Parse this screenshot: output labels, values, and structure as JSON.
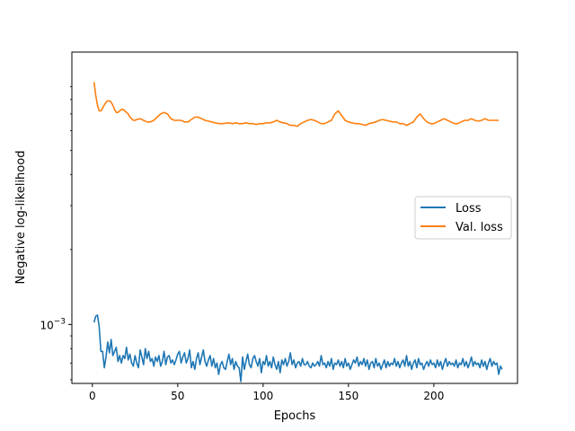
{
  "chart_data": {
    "type": "line",
    "title": "",
    "xlabel": "Epochs",
    "ylabel": "Negative log-likelihood",
    "yscale": "log",
    "xlim": [
      -12,
      249
    ],
    "ylim": [
      0.00058,
      0.0124
    ],
    "x_ticks": [
      0,
      50,
      100,
      150,
      200
    ],
    "x_tick_labels": [
      "0",
      "50",
      "100",
      "150",
      "200"
    ],
    "y_ticks": [
      0.001
    ],
    "y_tick_labels": [
      {
        "base": "10",
        "exp": "−3"
      }
    ],
    "grid": false,
    "legend_position": "center-right",
    "series": [
      {
        "name": "Loss",
        "color": "#1f77b4",
        "x_start": 1,
        "x_step": 1,
        "values": [
          0.00102,
          0.00108,
          0.00109,
          0.00098,
          0.00078,
          0.00078,
          0.00067,
          0.00074,
          0.00085,
          0.00077,
          0.00087,
          0.00075,
          0.00078,
          0.00081,
          0.00071,
          0.00075,
          0.0007,
          0.00075,
          0.00073,
          0.00081,
          0.00072,
          0.00076,
          0.0007,
          0.00068,
          0.00075,
          0.0007,
          0.00067,
          0.00079,
          0.00074,
          0.00069,
          0.0008,
          0.00073,
          0.00078,
          0.00071,
          0.00073,
          0.00068,
          0.00074,
          0.00071,
          0.00075,
          0.00068,
          0.00071,
          0.00078,
          0.00069,
          0.00074,
          0.00075,
          0.0007,
          0.00072,
          0.00069,
          0.00072,
          0.00076,
          0.00078,
          0.0007,
          0.00074,
          0.00077,
          0.0007,
          0.00073,
          0.00079,
          0.00067,
          0.00071,
          0.00066,
          0.00073,
          0.00077,
          0.00069,
          0.00074,
          0.00079,
          0.00071,
          0.00068,
          0.00072,
          0.00075,
          0.00068,
          0.00073,
          0.00067,
          0.0007,
          0.00063,
          0.00069,
          0.00071,
          0.00067,
          0.00066,
          0.00071,
          0.00076,
          0.00069,
          0.00073,
          0.00066,
          0.00071,
          0.00068,
          0.00067,
          0.00059,
          0.00074,
          0.00066,
          0.00071,
          0.00076,
          0.00069,
          0.00067,
          0.00073,
          0.00075,
          0.00071,
          0.00068,
          0.00073,
          0.00064,
          0.00071,
          0.00069,
          0.00075,
          0.00068,
          0.00071,
          0.00067,
          0.00074,
          0.00069,
          0.00066,
          0.00071,
          0.00064,
          0.00072,
          0.00069,
          0.00073,
          0.00068,
          0.00071,
          0.00077,
          0.00069,
          0.00072,
          0.00067,
          0.0007,
          0.00071,
          0.00068,
          0.00073,
          0.00069,
          0.00069,
          0.00071,
          0.00068,
          0.00067,
          0.0007,
          0.00068,
          0.00069,
          0.00071,
          0.00068,
          0.00075,
          0.00069,
          0.0007,
          0.00067,
          0.00071,
          0.00068,
          0.00073,
          0.00066,
          0.0007,
          0.00069,
          0.00072,
          0.00068,
          0.00071,
          0.00067,
          0.00073,
          0.00068,
          0.0007,
          0.00066,
          0.00069,
          0.00072,
          0.0007,
          0.00074,
          0.00068,
          0.00071,
          0.00069,
          0.00073,
          0.00068,
          0.00072,
          0.00066,
          0.0007,
          0.00071,
          0.00067,
          0.00073,
          0.00068,
          0.0007,
          0.00066,
          0.00069,
          0.00072,
          0.00067,
          0.00071,
          0.00068,
          0.0007,
          0.00069,
          0.00073,
          0.00068,
          0.00071,
          0.00067,
          0.0007,
          0.00072,
          0.00068,
          0.00075,
          0.00068,
          0.00071,
          0.00066,
          0.0007,
          0.00072,
          0.00067,
          0.00073,
          0.00069,
          0.0007,
          0.00066,
          0.00069,
          0.00071,
          0.00068,
          0.00072,
          0.00069,
          0.0007,
          0.00067,
          0.00072,
          0.00068,
          0.00071,
          0.00066,
          0.0007,
          0.00073,
          0.00068,
          0.00071,
          0.00069,
          0.0007,
          0.00068,
          0.00072,
          0.00067,
          0.0007,
          0.00069,
          0.00073,
          0.00068,
          0.00071,
          0.00067,
          0.0007,
          0.00074,
          0.00068,
          0.00071,
          0.00069,
          0.0007,
          0.00067,
          0.00072,
          0.00068,
          0.00071,
          0.00066,
          0.0007,
          0.00073,
          0.00068,
          0.00071,
          0.00069,
          0.0007,
          0.00063,
          0.00068,
          0.00066
        ]
      },
      {
        "name": "Val. loss",
        "color": "#ff7f0e",
        "x": [
          1,
          2,
          3,
          4,
          5,
          6,
          7,
          8,
          9,
          10,
          11,
          12,
          13,
          14,
          15,
          16,
          17,
          18,
          19,
          20,
          21,
          22,
          23,
          24,
          25,
          26,
          28,
          30,
          32,
          34,
          36,
          38,
          40,
          42,
          44,
          46,
          48,
          50,
          52,
          54,
          56,
          58,
          60,
          62,
          64,
          66,
          68,
          70,
          72,
          74,
          76,
          78,
          80,
          82,
          84,
          86,
          88,
          90,
          92,
          94,
          96,
          98,
          100,
          102,
          104,
          106,
          108,
          110,
          112,
          114,
          116,
          118,
          120,
          122,
          124,
          126,
          128,
          130,
          132,
          134,
          136,
          138,
          140,
          142,
          144,
          146,
          148,
          150,
          152,
          154,
          156,
          158,
          160,
          162,
          164,
          166,
          168,
          170,
          172,
          174,
          176,
          178,
          180,
          182,
          184,
          186,
          188,
          190,
          192,
          194,
          196,
          198,
          200,
          202,
          204,
          206,
          208,
          210,
          212,
          214,
          216,
          218,
          220,
          222,
          224,
          226,
          228,
          230,
          232,
          234,
          236,
          238
        ],
        "values": [
          0.0094,
          0.0083,
          0.0076,
          0.0072,
          0.0072,
          0.0074,
          0.0076,
          0.0078,
          0.0079,
          0.0079,
          0.0078,
          0.0076,
          0.0073,
          0.0071,
          0.0071,
          0.0072,
          0.0073,
          0.0073,
          0.0072,
          0.0071,
          0.007,
          0.0068,
          0.0067,
          0.0066,
          0.0066,
          0.00665,
          0.0067,
          0.0066,
          0.0065,
          0.0065,
          0.0066,
          0.0068,
          0.007,
          0.0071,
          0.007,
          0.0067,
          0.0066,
          0.0066,
          0.0066,
          0.0065,
          0.0065,
          0.00665,
          0.0068,
          0.0068,
          0.0067,
          0.0066,
          0.00655,
          0.0065,
          0.00645,
          0.0064,
          0.0064,
          0.00642,
          0.00645,
          0.0064,
          0.00645,
          0.0064,
          0.0064,
          0.00645,
          0.0064,
          0.0064,
          0.00635,
          0.0064,
          0.0064,
          0.00645,
          0.00645,
          0.0065,
          0.0066,
          0.0065,
          0.00645,
          0.0064,
          0.0063,
          0.0063,
          0.00625,
          0.0064,
          0.0065,
          0.0066,
          0.00665,
          0.0066,
          0.0065,
          0.0064,
          0.0064,
          0.0065,
          0.0066,
          0.007,
          0.0072,
          0.0069,
          0.0066,
          0.0065,
          0.00645,
          0.0064,
          0.0064,
          0.00635,
          0.0063,
          0.0064,
          0.00645,
          0.0065,
          0.0066,
          0.00665,
          0.0066,
          0.00655,
          0.0065,
          0.0065,
          0.0064,
          0.0064,
          0.0063,
          0.0064,
          0.0065,
          0.0068,
          0.007,
          0.0067,
          0.0065,
          0.0064,
          0.0064,
          0.0065,
          0.0066,
          0.0067,
          0.0066,
          0.0065,
          0.0064,
          0.0064,
          0.0065,
          0.0066,
          0.0066,
          0.0067,
          0.0066,
          0.00655,
          0.0066,
          0.0067,
          0.0066,
          0.0066,
          0.0066,
          0.0066
        ]
      }
    ]
  }
}
